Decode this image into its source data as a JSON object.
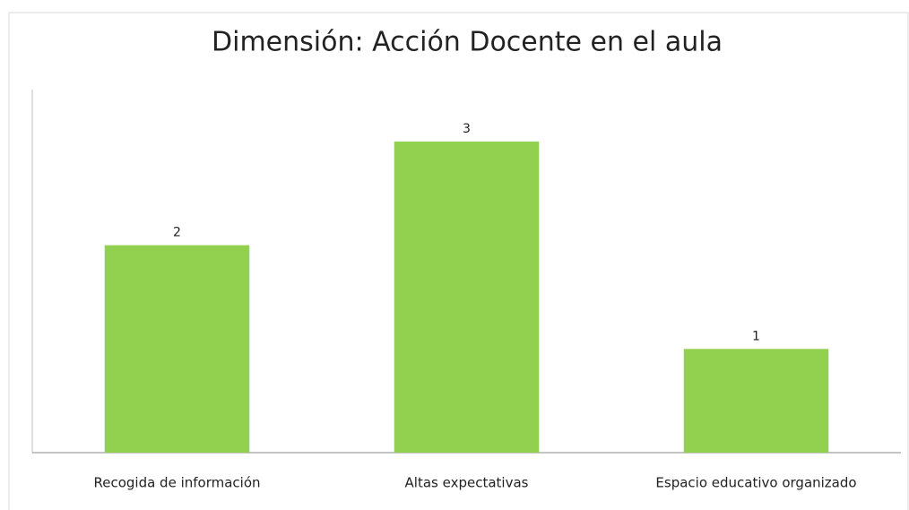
{
  "chart_data": {
    "type": "bar",
    "title": "Dimensión: Acción Docente en el aula",
    "categories": [
      "Recogida de información",
      "Altas expectativas",
      "Espacio educativo organizado"
    ],
    "values": [
      2,
      3,
      1
    ],
    "color": "#92d050",
    "ylim": [
      0,
      3.5
    ]
  }
}
